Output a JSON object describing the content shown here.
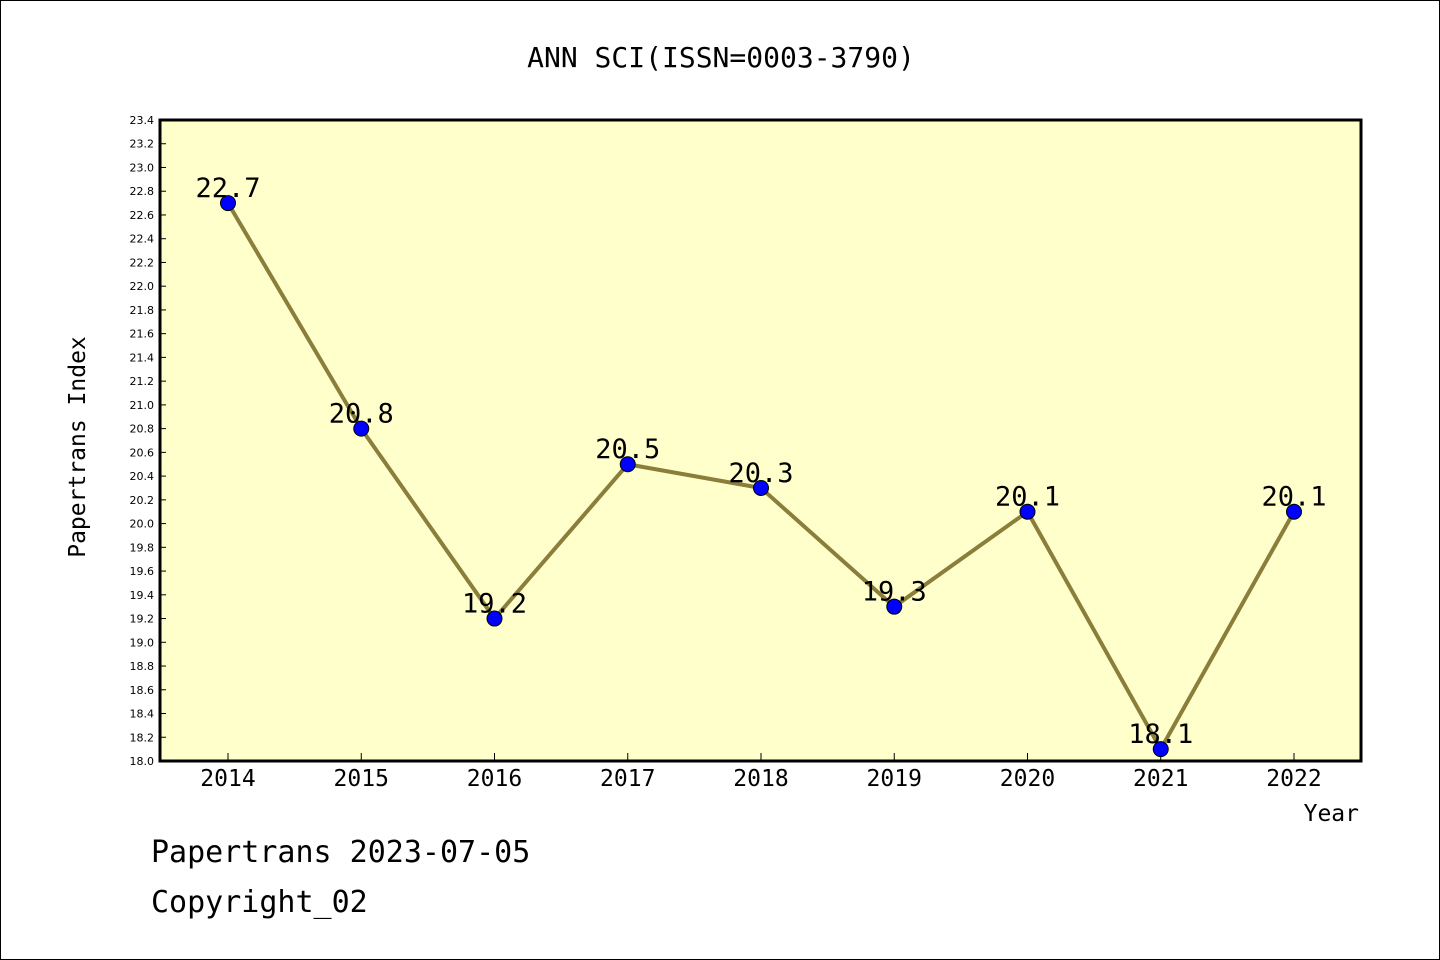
{
  "colors": {
    "plot_background": "#ffffcc",
    "line": "#8b7d3a",
    "marker": "#0000ff",
    "frame": "#000000"
  },
  "footer": {
    "line1": "Papertrans 2023-07-05",
    "line2": "Copyright_02"
  },
  "chart_data": {
    "type": "line",
    "title": "ANN SCI(ISSN=0003-3790)",
    "xlabel": "Year",
    "ylabel": "Papertrans Index",
    "ylim": [
      18.0,
      23.4
    ],
    "ytick_step": 0.2,
    "grid": false,
    "categories": [
      "2014",
      "2015",
      "2016",
      "2017",
      "2018",
      "2019",
      "2020",
      "2021",
      "2022"
    ],
    "series": [
      {
        "values": [
          22.7,
          20.8,
          19.2,
          20.5,
          20.3,
          19.3,
          20.1,
          18.1,
          20.1
        ],
        "labels": [
          "22.7",
          "20.8",
          "19.2",
          "20.5",
          "20.3",
          "19.3",
          "20.1",
          "18.1",
          "20.1"
        ]
      }
    ]
  }
}
